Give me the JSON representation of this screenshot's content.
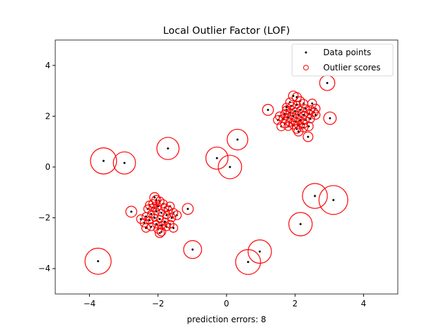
{
  "chart_data": {
    "type": "scatter",
    "title": "Local Outlier Factor (LOF)",
    "xlabel": "prediction errors: 8",
    "ylabel": "",
    "xlim": [
      -5,
      5
    ],
    "ylim": [
      -5,
      5
    ],
    "xticks": [
      -4,
      -2,
      0,
      2,
      4
    ],
    "yticks": [
      -4,
      -2,
      0,
      2,
      4
    ],
    "grid": false,
    "legend": {
      "placement": "upper-right",
      "entries": [
        "Data points",
        "Outlier scores"
      ]
    },
    "colors": {
      "points": "#000000",
      "scores": "#ff0000"
    },
    "point_fields": [
      "x",
      "y",
      "normalized_outlier_score"
    ],
    "points": [
      [
        -3.59,
        0.24,
        0.86
      ],
      [
        -2.98,
        0.16,
        0.73
      ],
      [
        -1.71,
        0.73,
        0.73
      ],
      [
        0.32,
        1.08,
        0.68
      ],
      [
        -0.28,
        0.35,
        0.73
      ],
      [
        0.1,
        0.0,
        0.77
      ],
      [
        -3.75,
        -3.71,
        0.86
      ],
      [
        -0.99,
        -3.25,
        0.59
      ],
      [
        0.63,
        -3.74,
        0.82
      ],
      [
        0.97,
        -3.33,
        0.77
      ],
      [
        2.16,
        -2.25,
        0.77
      ],
      [
        2.58,
        -1.14,
        0.82
      ],
      [
        3.12,
        -1.3,
        0.95
      ],
      [
        2.94,
        3.31,
        0.5
      ],
      [
        3.02,
        1.92,
        0.41
      ],
      [
        1.21,
        2.25,
        0.36
      ],
      [
        -2.78,
        -1.76,
        0.36
      ],
      [
        -1.13,
        -1.65,
        0.36
      ],
      [
        2.38,
        1.19,
        0.32
      ],
      [
        -2.1,
        -1.2,
        0.32
      ],
      [
        -2.05,
        -1.3,
        0.3
      ],
      [
        -1.95,
        -1.35,
        0.28
      ],
      [
        -1.85,
        -1.45,
        0.27
      ],
      [
        -2.25,
        -1.5,
        0.27
      ],
      [
        -2.15,
        -1.6,
        0.25
      ],
      [
        -2.0,
        -1.55,
        0.24
      ],
      [
        -1.8,
        -1.6,
        0.25
      ],
      [
        -1.7,
        -1.7,
        0.26
      ],
      [
        -1.55,
        -1.8,
        0.28
      ],
      [
        -1.45,
        -1.9,
        0.29
      ],
      [
        -1.6,
        -2.0,
        0.26
      ],
      [
        -1.75,
        -1.9,
        0.24
      ],
      [
        -1.9,
        -1.8,
        0.23
      ],
      [
        -2.05,
        -1.75,
        0.23
      ],
      [
        -2.2,
        -1.85,
        0.24
      ],
      [
        -2.35,
        -1.95,
        0.26
      ],
      [
        -2.5,
        -2.05,
        0.28
      ],
      [
        -2.4,
        -2.2,
        0.27
      ],
      [
        -2.25,
        -2.1,
        0.24
      ],
      [
        -2.1,
        -2.0,
        0.23
      ],
      [
        -1.95,
        -2.05,
        0.23
      ],
      [
        -1.8,
        -2.15,
        0.24
      ],
      [
        -1.65,
        -2.25,
        0.26
      ],
      [
        -1.55,
        -2.4,
        0.28
      ],
      [
        -1.75,
        -2.35,
        0.26
      ],
      [
        -1.9,
        -2.3,
        0.25
      ],
      [
        -2.05,
        -2.25,
        0.24
      ],
      [
        -2.2,
        -2.35,
        0.26
      ],
      [
        -2.35,
        -2.4,
        0.28
      ],
      [
        -2.0,
        -2.45,
        0.27
      ],
      [
        -1.95,
        -2.6,
        0.3
      ],
      [
        -2.15,
        -1.45,
        0.27
      ],
      [
        -1.9,
        -2.55,
        0.28
      ],
      [
        -2.3,
        -1.65,
        0.26
      ],
      [
        -1.65,
        -1.55,
        0.28
      ],
      [
        1.95,
        2.8,
        0.32
      ],
      [
        2.05,
        2.75,
        0.3
      ],
      [
        2.15,
        2.6,
        0.28
      ],
      [
        1.85,
        2.55,
        0.28
      ],
      [
        1.75,
        2.35,
        0.27
      ],
      [
        1.9,
        2.4,
        0.25
      ],
      [
        2.05,
        2.45,
        0.24
      ],
      [
        2.25,
        2.5,
        0.27
      ],
      [
        2.5,
        2.5,
        0.29
      ],
      [
        2.6,
        2.3,
        0.29
      ],
      [
        2.45,
        2.25,
        0.27
      ],
      [
        2.3,
        2.3,
        0.25
      ],
      [
        2.15,
        2.25,
        0.23
      ],
      [
        2.0,
        2.2,
        0.23
      ],
      [
        1.85,
        2.15,
        0.24
      ],
      [
        1.7,
        2.1,
        0.26
      ],
      [
        1.55,
        2.0,
        0.28
      ],
      [
        1.5,
        1.85,
        0.29
      ],
      [
        1.65,
        1.9,
        0.26
      ],
      [
        1.8,
        1.95,
        0.24
      ],
      [
        1.95,
        2.0,
        0.23
      ],
      [
        2.1,
        2.05,
        0.23
      ],
      [
        2.25,
        2.05,
        0.24
      ],
      [
        2.4,
        2.1,
        0.26
      ],
      [
        2.55,
        2.15,
        0.28
      ],
      [
        2.6,
        2.05,
        0.29
      ],
      [
        2.45,
        1.9,
        0.27
      ],
      [
        2.3,
        1.85,
        0.25
      ],
      [
        2.15,
        1.85,
        0.24
      ],
      [
        2.0,
        1.8,
        0.24
      ],
      [
        1.85,
        1.75,
        0.25
      ],
      [
        1.7,
        1.7,
        0.27
      ],
      [
        1.6,
        1.6,
        0.29
      ],
      [
        1.8,
        1.6,
        0.27
      ],
      [
        1.95,
        1.65,
        0.26
      ],
      [
        2.1,
        1.65,
        0.26
      ],
      [
        2.25,
        1.7,
        0.27
      ],
      [
        2.4,
        1.6,
        0.29
      ],
      [
        2.05,
        1.5,
        0.29
      ],
      [
        2.1,
        1.4,
        0.3
      ],
      [
        2.25,
        1.55,
        0.28
      ],
      [
        1.75,
        2.25,
        0.26
      ]
    ]
  }
}
